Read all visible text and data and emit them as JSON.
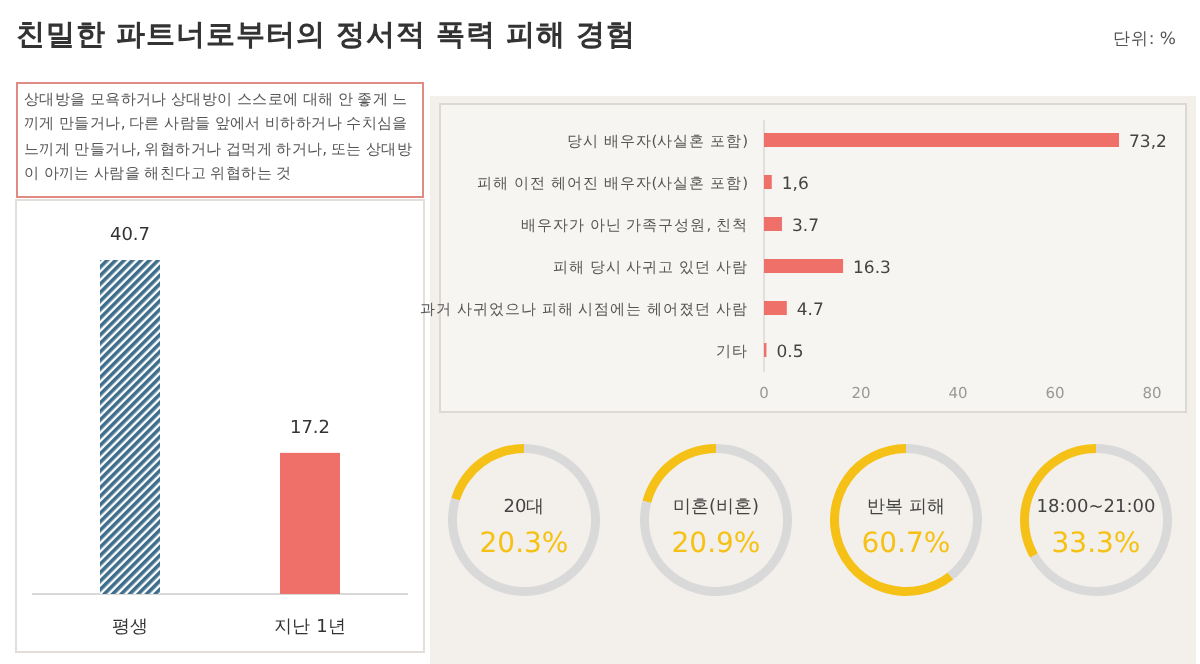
{
  "chart_data": [
    {
      "type": "bar",
      "title": "친밀한 파트너로부터의 정서적 폭력 피해 경험",
      "annotations": [
        "단위: %",
        "상대방을 모욕하거나 상대방이 스스로에 대해 안 좋게 느끼게 만들거나, 다른 사람들 앞에서 비하하거나 수치심을 느끼게 만들거나, 위협하거나 겁먹게 하거나, 또는 상대방이 아끼는 사람을 해친다고 위협하는 것"
      ],
      "categories": [
        "평생",
        "지난 1년"
      ],
      "values": [
        40.7,
        17.2
      ],
      "colors": [
        "#3f6e8c",
        "#ee7068"
      ],
      "data_labels": true
    },
    {
      "type": "bar",
      "orientation": "horizontal",
      "categories": [
        "당시 배우자(사실혼 포함)",
        "피해 이전 헤어진 배우자(사실혼 포함)",
        "배우자가 아닌 가족구성원, 친척",
        "피해 당시 사귀고 있던 사람",
        "과거 사귀었으나 피해 시점에는 헤어졌던 사람",
        "기타"
      ],
      "values": [
        73.2,
        1.6,
        3.7,
        16.3,
        4.7,
        0.5
      ],
      "value_labels": [
        "73,2",
        "1,6",
        "3.7",
        "16.3",
        "4.7",
        "0.5"
      ],
      "color": "#ee7068",
      "xlim": [
        0,
        80
      ],
      "xticks": [
        0,
        20,
        40,
        60,
        80
      ],
      "grid": false
    },
    {
      "type": "donut",
      "title": "20대",
      "categories": [
        null,
        null
      ],
      "values": [
        20.3,
        79.7
      ],
      "colors": [
        "#f5c116",
        "#d9d9d9"
      ],
      "annotations": [
        "20.3%"
      ]
    },
    {
      "type": "donut",
      "title": "미혼(비혼)",
      "categories": [
        null,
        null
      ],
      "values": [
        20.9,
        79.1
      ],
      "colors": [
        "#f5c116",
        "#d9d9d9"
      ],
      "annotations": [
        "20.9%"
      ]
    },
    {
      "type": "donut",
      "title": "반복 피해",
      "categories": [
        null,
        null
      ],
      "values": [
        60.7,
        39.3
      ],
      "colors": [
        "#f5c116",
        "#d9d9d9"
      ],
      "annotations": [
        "60.7%"
      ]
    },
    {
      "type": "donut",
      "title": "18:00~21:00",
      "categories": [
        null,
        null
      ],
      "values": [
        33.3,
        66.7
      ],
      "colors": [
        "#f5c116",
        "#d9d9d9"
      ],
      "annotations": [
        "33.3%"
      ]
    }
  ]
}
